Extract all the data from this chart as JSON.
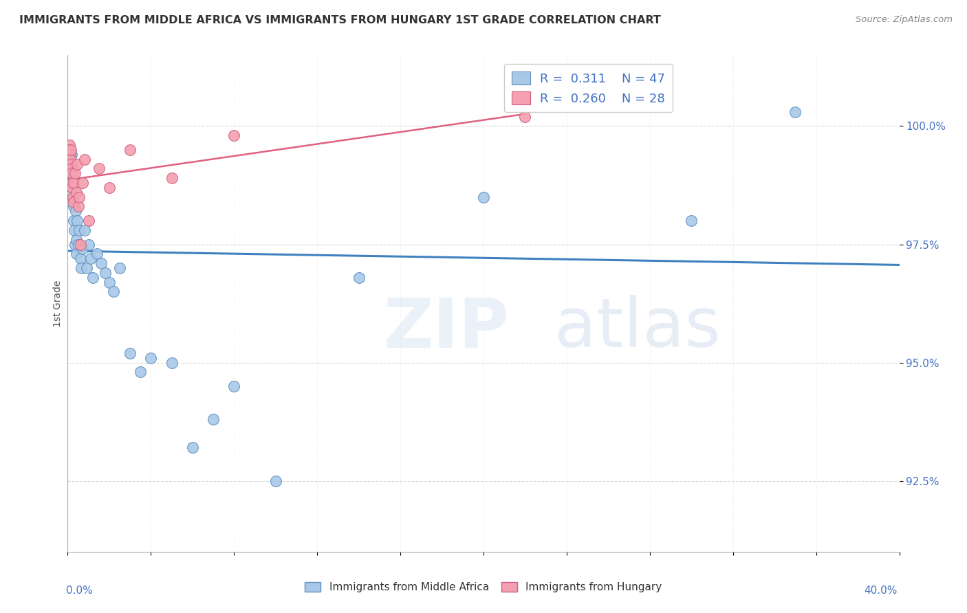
{
  "title": "IMMIGRANTS FROM MIDDLE AFRICA VS IMMIGRANTS FROM HUNGARY 1ST GRADE CORRELATION CHART",
  "source": "Source: ZipAtlas.com",
  "ylabel": "1st Grade",
  "ytick_labels": [
    "100.0%",
    "97.5%",
    "95.0%",
    "92.5%"
  ],
  "ytick_values": [
    100.0,
    97.5,
    95.0,
    92.5
  ],
  "xlim": [
    0.0,
    40.0
  ],
  "ylim": [
    91.0,
    101.5
  ],
  "blue_R": 0.311,
  "blue_N": 47,
  "pink_R": 0.26,
  "pink_N": 28,
  "blue_label": "Immigrants from Middle Africa",
  "pink_label": "Immigrants from Hungary",
  "blue_color": "#a8c8e8",
  "pink_color": "#f4a0b0",
  "blue_edge_color": "#6090c0",
  "pink_edge_color": "#d06080",
  "blue_line_color": "#4080c0",
  "pink_line_color": "#e06080",
  "title_color": "#333333",
  "axis_color": "#4472c4",
  "blue_x": [
    0.08,
    0.1,
    0.12,
    0.13,
    0.14,
    0.15,
    0.17,
    0.18,
    0.2,
    0.22,
    0.25,
    0.28,
    0.3,
    0.32,
    0.35,
    0.38,
    0.4,
    0.42,
    0.45,
    0.5,
    0.55,
    0.6,
    0.65,
    0.7,
    0.8,
    0.9,
    1.0,
    1.1,
    1.2,
    1.4,
    1.6,
    1.8,
    2.0,
    2.2,
    2.5,
    3.0,
    3.5,
    4.0,
    5.0,
    6.0,
    7.0,
    8.0,
    10.0,
    14.0,
    20.0,
    30.0,
    35.0
  ],
  "blue_y": [
    99.5,
    99.2,
    99.0,
    99.3,
    99.1,
    98.8,
    99.4,
    99.0,
    98.7,
    99.1,
    98.5,
    98.3,
    98.0,
    97.8,
    97.5,
    98.2,
    97.3,
    97.6,
    98.0,
    97.5,
    97.8,
    97.2,
    97.0,
    97.4,
    97.8,
    97.0,
    97.5,
    97.2,
    96.8,
    97.3,
    97.1,
    96.9,
    96.7,
    96.5,
    97.0,
    95.2,
    94.8,
    95.1,
    95.0,
    93.2,
    93.8,
    94.5,
    92.5,
    96.8,
    98.5,
    98.0,
    100.3
  ],
  "pink_x": [
    0.08,
    0.1,
    0.12,
    0.13,
    0.14,
    0.15,
    0.17,
    0.18,
    0.2,
    0.22,
    0.25,
    0.28,
    0.3,
    0.35,
    0.4,
    0.45,
    0.5,
    0.55,
    0.6,
    0.7,
    0.8,
    1.0,
    1.5,
    2.0,
    3.0,
    5.0,
    8.0,
    22.0
  ],
  "pink_y": [
    99.6,
    99.5,
    99.4,
    99.3,
    99.5,
    99.2,
    99.1,
    98.8,
    99.0,
    98.7,
    98.5,
    98.8,
    98.4,
    99.0,
    98.6,
    99.2,
    98.3,
    98.5,
    97.5,
    98.8,
    99.3,
    98.0,
    99.1,
    98.7,
    99.5,
    98.9,
    99.8,
    100.2
  ]
}
